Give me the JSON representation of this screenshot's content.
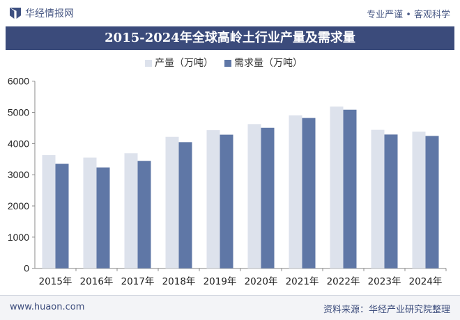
{
  "header": {
    "brand": "华经情报网",
    "slogan": "专业严谨 • 客观科学"
  },
  "footer": {
    "url": "www.huaon.com",
    "source": "资料来源：华经产业研究院整理"
  },
  "chart_data": {
    "type": "bar",
    "title": "2015-2024年全球高岭土行业产量及需求量",
    "categories": [
      "2015年",
      "2016年",
      "2017年",
      "2018年",
      "2019年",
      "2020年",
      "2021年",
      "2022年",
      "2023年",
      "2024年"
    ],
    "series": [
      {
        "name": "产量（万吨）",
        "color": "#dde2ec",
        "values": [
          3630,
          3550,
          3690,
          4215,
          4430,
          4625,
          4905,
          5185,
          4440,
          4380
        ]
      },
      {
        "name": "需求量（万吨）",
        "color": "#5f77a6",
        "values": [
          3350,
          3235,
          3445,
          4045,
          4285,
          4505,
          4820,
          5085,
          4290,
          4245
        ]
      }
    ],
    "ylim": [
      0,
      6000
    ],
    "yticks": [
      0,
      1000,
      2000,
      3000,
      4000,
      5000,
      6000
    ],
    "grid": false,
    "legend": "top"
  }
}
